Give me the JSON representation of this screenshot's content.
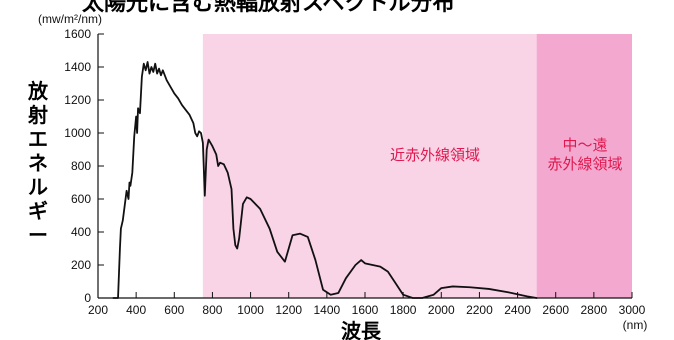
{
  "chart_data": {
    "type": "line",
    "title": "太陽光に含む熱輻放射スペクトル分布",
    "ylabel": "放射エネルギー",
    "yunit": "(mw/m²/nm)",
    "xlabel": "波長",
    "xunit": "(nm)",
    "xlim": [
      200,
      3000
    ],
    "ylim": [
      0,
      1600
    ],
    "x_ticks": [
      200,
      400,
      600,
      800,
      1000,
      1200,
      1400,
      1600,
      1800,
      2000,
      2200,
      2400,
      2600,
      2800,
      3000
    ],
    "y_ticks": [
      0,
      200,
      400,
      600,
      800,
      1000,
      1200,
      1400,
      1600
    ],
    "regions": [
      {
        "label": "近赤外線領域",
        "range": [
          750,
          2500
        ],
        "color": "#f8d4e6",
        "label_color": "#e0184f"
      },
      {
        "label": "中～遠\n赤外線領域",
        "range": [
          2500,
          3000
        ],
        "color": "#f3a9cf",
        "label_color": "#e0184f"
      }
    ],
    "series": [
      {
        "values": [
          [
            280,
            0
          ],
          [
            305,
            0
          ],
          [
            315,
            300
          ],
          [
            320,
            420
          ],
          [
            330,
            470
          ],
          [
            340,
            560
          ],
          [
            350,
            650
          ],
          [
            360,
            600
          ],
          [
            365,
            700
          ],
          [
            370,
            680
          ],
          [
            380,
            760
          ],
          [
            390,
            980
          ],
          [
            400,
            1100
          ],
          [
            405,
            1000
          ],
          [
            410,
            1150
          ],
          [
            420,
            1120
          ],
          [
            430,
            1340
          ],
          [
            440,
            1420
          ],
          [
            450,
            1380
          ],
          [
            460,
            1430
          ],
          [
            470,
            1360
          ],
          [
            480,
            1400
          ],
          [
            490,
            1370
          ],
          [
            500,
            1420
          ],
          [
            510,
            1360
          ],
          [
            520,
            1390
          ],
          [
            530,
            1350
          ],
          [
            540,
            1380
          ],
          [
            560,
            1320
          ],
          [
            580,
            1280
          ],
          [
            600,
            1240
          ],
          [
            620,
            1210
          ],
          [
            640,
            1170
          ],
          [
            660,
            1140
          ],
          [
            680,
            1110
          ],
          [
            700,
            1060
          ],
          [
            710,
            1000
          ],
          [
            720,
            980
          ],
          [
            730,
            1010
          ],
          [
            740,
            1000
          ],
          [
            750,
            940
          ],
          [
            760,
            620
          ],
          [
            770,
            900
          ],
          [
            780,
            960
          ],
          [
            800,
            920
          ],
          [
            820,
            870
          ],
          [
            830,
            800
          ],
          [
            840,
            820
          ],
          [
            860,
            810
          ],
          [
            880,
            760
          ],
          [
            900,
            660
          ],
          [
            910,
            420
          ],
          [
            920,
            320
          ],
          [
            930,
            300
          ],
          [
            940,
            360
          ],
          [
            960,
            570
          ],
          [
            980,
            610
          ],
          [
            1000,
            600
          ],
          [
            1050,
            540
          ],
          [
            1100,
            420
          ],
          [
            1140,
            280
          ],
          [
            1180,
            220
          ],
          [
            1220,
            380
          ],
          [
            1260,
            390
          ],
          [
            1300,
            370
          ],
          [
            1340,
            230
          ],
          [
            1380,
            50
          ],
          [
            1420,
            20
          ],
          [
            1460,
            30
          ],
          [
            1500,
            120
          ],
          [
            1550,
            200
          ],
          [
            1580,
            230
          ],
          [
            1600,
            210
          ],
          [
            1640,
            200
          ],
          [
            1680,
            190
          ],
          [
            1720,
            160
          ],
          [
            1760,
            90
          ],
          [
            1800,
            20
          ],
          [
            1850,
            0
          ],
          [
            1900,
            0
          ],
          [
            1960,
            20
          ],
          [
            2000,
            60
          ],
          [
            2060,
            70
          ],
          [
            2150,
            65
          ],
          [
            2250,
            55
          ],
          [
            2350,
            35
          ],
          [
            2450,
            10
          ],
          [
            2500,
            0
          ]
        ]
      }
    ]
  }
}
